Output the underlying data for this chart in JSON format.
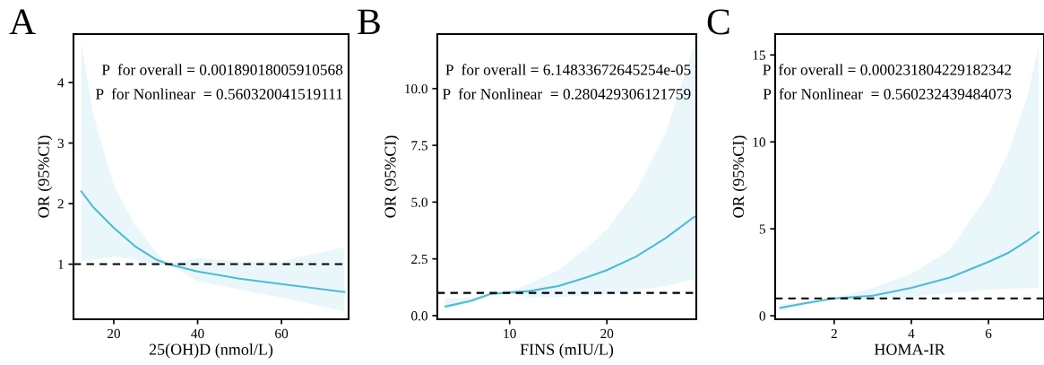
{
  "chart_data": [
    {
      "type": "line",
      "title": "A",
      "xlabel": "25(OH)D (nmol/L)",
      "ylabel": "OR (95%CI)",
      "xlim": [
        10.4,
        76
      ],
      "ylim": [
        0.09,
        4.8
      ],
      "xticks": [
        20,
        40,
        60
      ],
      "yticks": [
        1,
        2,
        3,
        4
      ],
      "grid": false,
      "legend": false,
      "marker": "none",
      "line_style": "solid",
      "annotations": [
        "P  for overall = 0.00189018005910568",
        "P  for Nonlinear  = 0.560320041519111"
      ],
      "ref_lines": [
        {
          "axis": "y",
          "value": 1,
          "color": "#000000",
          "line_style": "dashed"
        }
      ],
      "series": [
        {
          "color": "#4dbbd5",
          "x": [
            12.3,
            15,
            20,
            25,
            30,
            33,
            40,
            50,
            60,
            75
          ],
          "values": [
            2.2,
            1.95,
            1.6,
            1.3,
            1.08,
            1.0,
            0.88,
            0.76,
            0.67,
            0.54
          ],
          "lower": [
            1.05,
            1.08,
            1.12,
            1.08,
            0.98,
            1.0,
            0.72,
            0.58,
            0.45,
            0.22
          ],
          "upper": [
            4.65,
            3.5,
            2.3,
            1.65,
            1.2,
            1.0,
            1.1,
            1.04,
            1.05,
            1.28
          ]
        }
      ]
    },
    {
      "type": "line",
      "title": "B",
      "xlabel": "FINS (mIU/L)",
      "ylabel": "OR (95%CI)",
      "xlim": [
        2.56,
        29.2
      ],
      "ylim": [
        -0.16,
        12.4
      ],
      "xticks": [
        10,
        20
      ],
      "yticks": [
        {
          "value": 0,
          "label": "0.0"
        },
        2.5,
        {
          "value": 5,
          "label": "5.0"
        },
        7.5,
        {
          "value": 10,
          "label": "10.0"
        }
      ],
      "grid": false,
      "legend": false,
      "marker": "none",
      "line_style": "solid",
      "annotations": [
        "P  for overall = 6.14833672645254e-05",
        "P  for Nonlinear  = 0.280429306121759"
      ],
      "ref_lines": [
        {
          "axis": "y",
          "value": 1,
          "color": "#000000",
          "line_style": "dashed"
        }
      ],
      "series": [
        {
          "color": "#4dbbd5",
          "x": [
            3.4,
            6,
            8,
            10,
            12,
            15,
            18,
            20,
            23,
            26,
            29
          ],
          "values": [
            0.4,
            0.65,
            0.95,
            1.02,
            1.08,
            1.3,
            1.7,
            2.0,
            2.6,
            3.4,
            4.35
          ],
          "lower": [
            0.25,
            0.6,
            0.95,
            1.0,
            0.8,
            0.82,
            0.9,
            0.95,
            1.1,
            1.3,
            1.6
          ],
          "upper": [
            0.75,
            0.8,
            1.0,
            1.05,
            1.4,
            2.0,
            3.0,
            3.8,
            5.5,
            8.0,
            11.9
          ]
        }
      ]
    },
    {
      "type": "line",
      "title": "C",
      "xlabel": "HOMA-IR",
      "ylabel": "OR (95%CI)",
      "xlim": [
        0.47,
        7.44
      ],
      "ylim": [
        -0.2,
        16.2
      ],
      "xticks": [
        2,
        4,
        6
      ],
      "yticks": [
        0,
        5,
        10,
        15
      ],
      "grid": false,
      "legend": false,
      "marker": "none",
      "line_style": "solid",
      "annotations": [
        "P  for overall = 0.000231804229182342",
        "P  for Nonlinear  = 0.560232439484073"
      ],
      "ref_lines": [
        {
          "axis": "y",
          "value": 1,
          "color": "#000000",
          "line_style": "dashed"
        }
      ],
      "series": [
        {
          "color": "#4dbbd5",
          "x": [
            0.6,
            1.2,
            2,
            3,
            4,
            5,
            6,
            6.5,
            7,
            7.3
          ],
          "values": [
            0.45,
            0.7,
            1.0,
            1.15,
            1.6,
            2.2,
            3.1,
            3.6,
            4.3,
            4.8
          ],
          "lower": [
            0.25,
            0.6,
            1.0,
            0.95,
            1.1,
            1.3,
            1.5,
            1.55,
            1.58,
            1.6
          ],
          "upper": [
            0.65,
            0.8,
            1.0,
            1.6,
            2.4,
            3.8,
            7.0,
            9.3,
            12.5,
            15.5
          ]
        }
      ]
    }
  ]
}
